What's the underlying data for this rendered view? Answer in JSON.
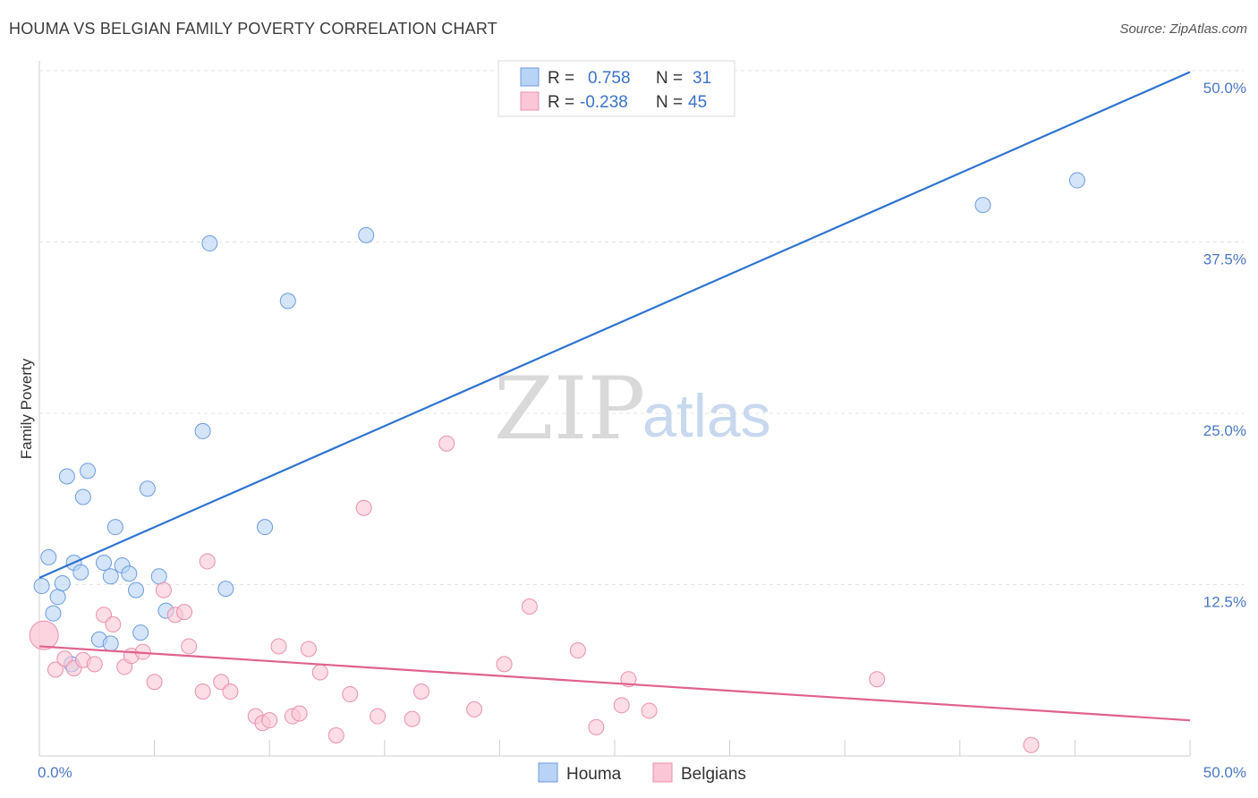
{
  "header": {
    "title": "HOUMA VS BELGIAN FAMILY POVERTY CORRELATION CHART",
    "source": "Source: ZipAtlas.com"
  },
  "watermark": {
    "zip": "ZIP",
    "atlas": "atlas"
  },
  "legend": {
    "r_label": "R =",
    "n_label": "N =",
    "rows": [
      {
        "name": "Houma",
        "r": "0.758",
        "n": "31",
        "fill": "#b8d3f5",
        "stroke": "#6b9be0"
      },
      {
        "name": "Belgians",
        "r": "-0.238",
        "n": "45",
        "fill": "#fbc6d6",
        "stroke": "#e891ad"
      }
    ]
  },
  "chart_data": {
    "type": "scatter",
    "title": "HOUMA VS BELGIAN FAMILY POVERTY CORRELATION CHART",
    "xlabel": "",
    "ylabel": "Family Poverty",
    "xlim": [
      0,
      50
    ],
    "ylim": [
      0,
      50
    ],
    "x_tick_labels": [
      "0.0%",
      "50.0%"
    ],
    "y_ticks": [
      12.5,
      25.0,
      37.5,
      50.0
    ],
    "y_tick_labels": [
      "12.5%",
      "25.0%",
      "37.5%",
      "50.0%"
    ],
    "grid": true,
    "legend_position": "top-center",
    "series": [
      {
        "name": "Houma",
        "color": "#6b9be0",
        "fill": "#b8d3f5",
        "line_color": "#2f72d0",
        "trend": [
          [
            0,
            13.0
          ],
          [
            50,
            49.9
          ]
        ],
        "points": [
          [
            0.1,
            12.4
          ],
          [
            0.4,
            14.5
          ],
          [
            0.6,
            10.4
          ],
          [
            0.8,
            11.6
          ],
          [
            1.0,
            12.6
          ],
          [
            1.2,
            20.4
          ],
          [
            1.4,
            6.7
          ],
          [
            1.5,
            14.1
          ],
          [
            1.8,
            13.4
          ],
          [
            1.9,
            18.9
          ],
          [
            2.1,
            20.8
          ],
          [
            2.6,
            8.5
          ],
          [
            2.8,
            14.1
          ],
          [
            3.1,
            8.2
          ],
          [
            3.1,
            13.1
          ],
          [
            3.3,
            16.7
          ],
          [
            3.6,
            13.9
          ],
          [
            3.9,
            13.3
          ],
          [
            4.2,
            12.1
          ],
          [
            4.4,
            9.0
          ],
          [
            4.7,
            19.5
          ],
          [
            5.2,
            13.1
          ],
          [
            5.5,
            10.6
          ],
          [
            7.1,
            23.7
          ],
          [
            7.4,
            37.4
          ],
          [
            8.1,
            12.2
          ],
          [
            9.8,
            16.7
          ],
          [
            10.8,
            33.2
          ],
          [
            14.2,
            38.0
          ],
          [
            41.0,
            40.2
          ],
          [
            45.1,
            42.0
          ]
        ]
      },
      {
        "name": "Belgians",
        "color": "#e891ad",
        "fill": "#fbc6d6",
        "line_color": "#e0628d",
        "trend": [
          [
            0,
            8.0
          ],
          [
            50,
            2.6
          ]
        ],
        "points": [
          [
            0.2,
            8.8
          ],
          [
            0.7,
            6.3
          ],
          [
            1.1,
            7.1
          ],
          [
            1.5,
            6.4
          ],
          [
            1.9,
            7.0
          ],
          [
            2.4,
            6.7
          ],
          [
            2.8,
            10.3
          ],
          [
            3.2,
            9.6
          ],
          [
            3.7,
            6.5
          ],
          [
            4.0,
            7.3
          ],
          [
            4.5,
            7.6
          ],
          [
            5.0,
            5.4
          ],
          [
            5.4,
            12.1
          ],
          [
            5.9,
            10.3
          ],
          [
            6.3,
            10.5
          ],
          [
            6.5,
            8.0
          ],
          [
            7.1,
            4.7
          ],
          [
            7.3,
            14.2
          ],
          [
            7.9,
            5.4
          ],
          [
            8.3,
            4.7
          ],
          [
            9.4,
            2.9
          ],
          [
            9.7,
            2.4
          ],
          [
            10.0,
            2.6
          ],
          [
            10.4,
            8.0
          ],
          [
            11.0,
            2.9
          ],
          [
            11.3,
            3.1
          ],
          [
            11.7,
            7.8
          ],
          [
            12.2,
            6.1
          ],
          [
            12.9,
            1.5
          ],
          [
            13.5,
            4.5
          ],
          [
            14.1,
            18.1
          ],
          [
            14.7,
            2.9
          ],
          [
            16.2,
            2.7
          ],
          [
            16.6,
            4.7
          ],
          [
            17.7,
            22.8
          ],
          [
            18.9,
            3.4
          ],
          [
            20.2,
            6.7
          ],
          [
            21.3,
            10.9
          ],
          [
            23.4,
            7.7
          ],
          [
            24.2,
            2.1
          ],
          [
            25.3,
            3.7
          ],
          [
            25.6,
            5.6
          ],
          [
            26.5,
            3.3
          ],
          [
            36.4,
            5.6
          ],
          [
            43.1,
            0.8
          ]
        ]
      }
    ]
  }
}
